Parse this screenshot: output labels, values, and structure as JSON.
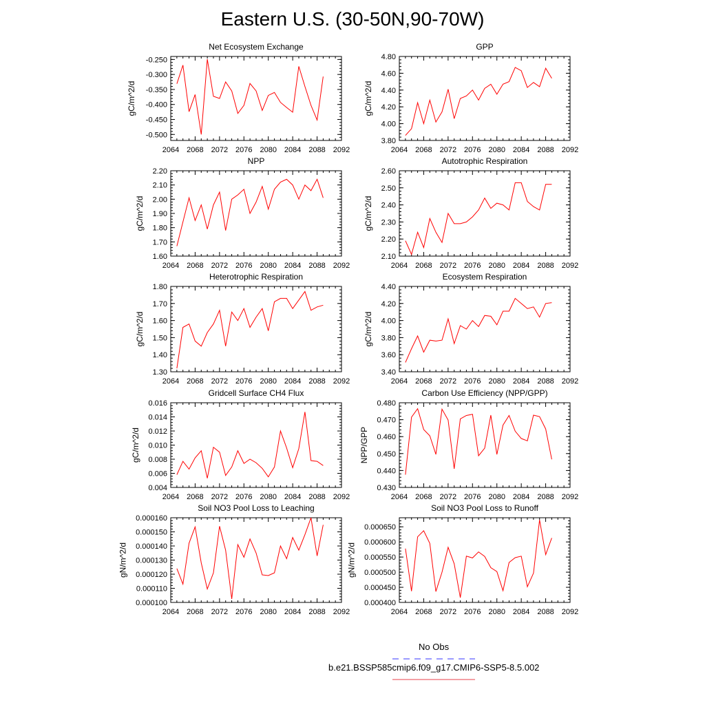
{
  "title": "Eastern U.S. (30-50N,90-70W)",
  "legend": {
    "items": [
      {
        "label": "No Obs",
        "color": "#3333ff",
        "dash": true
      },
      {
        "label": "b.e21.BSSP585cmip6.f09_g17.CMIP6-SSP5-8.5.002",
        "color": "#e8404a",
        "dash": false
      }
    ]
  },
  "colors": {
    "series": "#ff0000",
    "axis": "#000000"
  },
  "chart_data": [
    {
      "type": "line",
      "title": "Net Ecosystem Exchange",
      "ylabel": "gC/m^2/d",
      "xlim": [
        2064,
        2092
      ],
      "xticks": [
        "2064",
        "2068",
        "2072",
        "2076",
        "2080",
        "2084",
        "2088",
        "2092"
      ],
      "ylim": [
        -0.52,
        -0.24
      ],
      "yticks": [
        "-0.250",
        "-0.300",
        "-0.350",
        "-0.400",
        "-0.450",
        "-0.500"
      ],
      "x": [
        2065,
        2066,
        2067,
        2068,
        2069,
        2070,
        2071,
        2072,
        2073,
        2074,
        2075,
        2076,
        2077,
        2078,
        2079,
        2080,
        2081,
        2082,
        2083,
        2084,
        2085,
        2086,
        2087,
        2088,
        2089
      ],
      "series": [
        {
          "values": [
            -0.331,
            -0.269,
            -0.424,
            -0.367,
            -0.5,
            -0.249,
            -0.373,
            -0.38,
            -0.325,
            -0.355,
            -0.43,
            -0.403,
            -0.33,
            -0.355,
            -0.42,
            -0.37,
            -0.36,
            -0.393,
            -0.41,
            -0.426,
            -0.273,
            -0.34,
            -0.403,
            -0.452,
            -0.307
          ]
        }
      ]
    },
    {
      "type": "line",
      "title": "GPP",
      "ylabel": "gC/m^2/d",
      "xlim": [
        2064,
        2092
      ],
      "xticks": [
        "2064",
        "2068",
        "2072",
        "2076",
        "2080",
        "2084",
        "2088",
        "2092"
      ],
      "ylim": [
        3.8,
        4.8
      ],
      "yticks": [
        "4.80",
        "4.60",
        "4.40",
        "4.20",
        "4.00",
        "3.80"
      ],
      "x": [
        2065,
        2066,
        2067,
        2068,
        2069,
        2070,
        2071,
        2072,
        2073,
        2074,
        2075,
        2076,
        2077,
        2078,
        2079,
        2080,
        2081,
        2082,
        2083,
        2084,
        2085,
        2086,
        2087,
        2088,
        2089
      ],
      "series": [
        {
          "values": [
            3.86,
            3.94,
            4.25,
            4.0,
            4.28,
            4.02,
            4.14,
            4.41,
            4.06,
            4.3,
            4.33,
            4.4,
            4.28,
            4.42,
            4.47,
            4.35,
            4.47,
            4.5,
            4.67,
            4.63,
            4.43,
            4.49,
            4.44,
            4.66,
            4.54
          ]
        }
      ]
    },
    {
      "type": "line",
      "title": "NPP",
      "ylabel": "gC/m^2/d",
      "xlim": [
        2064,
        2092
      ],
      "xticks": [
        "2064",
        "2068",
        "2072",
        "2076",
        "2080",
        "2084",
        "2088",
        "2092"
      ],
      "ylim": [
        1.6,
        2.2
      ],
      "yticks": [
        "2.20",
        "2.10",
        "2.00",
        "1.90",
        "1.80",
        "1.70",
        "1.60"
      ],
      "x": [
        2065,
        2066,
        2067,
        2068,
        2069,
        2070,
        2071,
        2072,
        2073,
        2074,
        2075,
        2076,
        2077,
        2078,
        2079,
        2080,
        2081,
        2082,
        2083,
        2084,
        2085,
        2086,
        2087,
        2088,
        2089
      ],
      "series": [
        {
          "values": [
            1.67,
            1.84,
            2.01,
            1.85,
            1.96,
            1.79,
            1.96,
            2.05,
            1.78,
            2.0,
            2.03,
            2.07,
            1.9,
            1.98,
            2.09,
            1.93,
            2.07,
            2.12,
            2.14,
            2.1,
            2.0,
            2.1,
            2.06,
            2.14,
            2.01
          ]
        }
      ]
    },
    {
      "type": "line",
      "title": "Autotrophic Respiration",
      "ylabel": "gC/m^2/d",
      "xlim": [
        2064,
        2092
      ],
      "xticks": [
        "2064",
        "2068",
        "2072",
        "2076",
        "2080",
        "2084",
        "2088",
        "2092"
      ],
      "ylim": [
        2.1,
        2.6
      ],
      "yticks": [
        "2.60",
        "2.50",
        "2.40",
        "2.30",
        "2.20",
        "2.10"
      ],
      "x": [
        2065,
        2066,
        2067,
        2068,
        2069,
        2070,
        2071,
        2072,
        2073,
        2074,
        2075,
        2076,
        2077,
        2078,
        2079,
        2080,
        2081,
        2082,
        2083,
        2084,
        2085,
        2086,
        2087,
        2088,
        2089
      ],
      "series": [
        {
          "values": [
            2.19,
            2.11,
            2.24,
            2.15,
            2.32,
            2.24,
            2.18,
            2.35,
            2.29,
            2.29,
            2.3,
            2.33,
            2.37,
            2.44,
            2.38,
            2.41,
            2.4,
            2.37,
            2.53,
            2.53,
            2.42,
            2.39,
            2.37,
            2.52,
            2.52
          ]
        }
      ]
    },
    {
      "type": "line",
      "title": "Heterotrophic Respiration",
      "ylabel": "gC/m^2/d",
      "xlim": [
        2064,
        2092
      ],
      "xticks": [
        "2064",
        "2068",
        "2072",
        "2076",
        "2080",
        "2084",
        "2088",
        "2092"
      ],
      "ylim": [
        1.3,
        1.8
      ],
      "yticks": [
        "1.80",
        "1.70",
        "1.60",
        "1.50",
        "1.40",
        "1.30"
      ],
      "x": [
        2065,
        2066,
        2067,
        2068,
        2069,
        2070,
        2071,
        2072,
        2073,
        2074,
        2075,
        2076,
        2077,
        2078,
        2079,
        2080,
        2081,
        2082,
        2083,
        2084,
        2085,
        2086,
        2087,
        2088,
        2089
      ],
      "series": [
        {
          "values": [
            1.32,
            1.56,
            1.58,
            1.48,
            1.45,
            1.53,
            1.58,
            1.66,
            1.45,
            1.65,
            1.6,
            1.67,
            1.56,
            1.62,
            1.67,
            1.54,
            1.71,
            1.73,
            1.73,
            1.67,
            1.72,
            1.77,
            1.66,
            1.68,
            1.69
          ]
        }
      ]
    },
    {
      "type": "line",
      "title": "Ecosystem Respiration",
      "ylabel": "gC/m^2/d",
      "xlim": [
        2064,
        2092
      ],
      "xticks": [
        "2064",
        "2068",
        "2072",
        "2076",
        "2080",
        "2084",
        "2088",
        "2092"
      ],
      "ylim": [
        3.4,
        4.4
      ],
      "yticks": [
        "4.40",
        "4.20",
        "4.00",
        "3.80",
        "3.60",
        "3.40"
      ],
      "x": [
        2065,
        2066,
        2067,
        2068,
        2069,
        2070,
        2071,
        2072,
        2073,
        2074,
        2075,
        2076,
        2077,
        2078,
        2079,
        2080,
        2081,
        2082,
        2083,
        2084,
        2085,
        2086,
        2087,
        2088,
        2089
      ],
      "series": [
        {
          "values": [
            3.51,
            3.67,
            3.82,
            3.63,
            3.77,
            3.76,
            3.77,
            4.02,
            3.73,
            3.94,
            3.9,
            4.0,
            3.93,
            4.06,
            4.05,
            3.95,
            4.11,
            4.11,
            4.26,
            4.2,
            4.14,
            4.16,
            4.04,
            4.2,
            4.21
          ]
        }
      ]
    },
    {
      "type": "line",
      "title": "Gridcell Surface CH4 Flux",
      "ylabel": "gC/m^2/d",
      "xlim": [
        2064,
        2092
      ],
      "xticks": [
        "2064",
        "2068",
        "2072",
        "2076",
        "2080",
        "2084",
        "2088",
        "2092"
      ],
      "ylim": [
        0.004,
        0.016
      ],
      "yticks": [
        "0.016",
        "0.014",
        "0.012",
        "0.010",
        "0.008",
        "0.006",
        "0.004"
      ],
      "x": [
        2065,
        2066,
        2067,
        2068,
        2069,
        2070,
        2071,
        2072,
        2073,
        2074,
        2075,
        2076,
        2077,
        2078,
        2079,
        2080,
        2081,
        2082,
        2083,
        2084,
        2085,
        2086,
        2087,
        2088,
        2089
      ],
      "series": [
        {
          "values": [
            0.0058,
            0.0077,
            0.0066,
            0.0082,
            0.0092,
            0.0053,
            0.0097,
            0.009,
            0.0057,
            0.0069,
            0.0092,
            0.0074,
            0.008,
            0.0075,
            0.0067,
            0.0055,
            0.0069,
            0.012,
            0.0096,
            0.0068,
            0.0095,
            0.0147,
            0.0078,
            0.0077,
            0.0071
          ]
        }
      ]
    },
    {
      "type": "line",
      "title": "Carbon Use Efficiency (NPP/GPP)",
      "ylabel": "NPP/GPP",
      "xlim": [
        2064,
        2092
      ],
      "xticks": [
        "2064",
        "2068",
        "2072",
        "2076",
        "2080",
        "2084",
        "2088",
        "2092"
      ],
      "ylim": [
        0.43,
        0.48
      ],
      "yticks": [
        "0.480",
        "0.470",
        "0.460",
        "0.450",
        "0.440",
        "0.430"
      ],
      "x": [
        2065,
        2066,
        2067,
        2068,
        2069,
        2070,
        2071,
        2072,
        2073,
        2074,
        2075,
        2076,
        2077,
        2078,
        2079,
        2080,
        2081,
        2082,
        2083,
        2084,
        2085,
        2086,
        2087,
        2088,
        2089
      ],
      "series": [
        {
          "values": [
            0.4375,
            0.4715,
            0.4765,
            0.4642,
            0.4605,
            0.4495,
            0.4762,
            0.4698,
            0.441,
            0.4705,
            0.4725,
            0.4732,
            0.4487,
            0.4532,
            0.4727,
            0.4495,
            0.4668,
            0.4725,
            0.4632,
            0.4589,
            0.4575,
            0.4727,
            0.4718,
            0.4645,
            0.4466
          ]
        }
      ]
    },
    {
      "type": "line",
      "title": "Soil NO3 Pool Loss to Leaching",
      "ylabel": "gN/m^2/d",
      "xlim": [
        2064,
        2092
      ],
      "xticks": [
        "2064",
        "2068",
        "2072",
        "2076",
        "2080",
        "2084",
        "2088",
        "2092"
      ],
      "ylim": [
        0.0001,
        0.00016
      ],
      "yticks": [
        "0.000160",
        "0.000150",
        "0.000140",
        "0.000130",
        "0.000120",
        "0.000110",
        "0.000100"
      ],
      "x": [
        2065,
        2066,
        2067,
        2068,
        2069,
        2070,
        2071,
        2072,
        2073,
        2074,
        2075,
        2076,
        2077,
        2078,
        2079,
        2080,
        2081,
        2082,
        2083,
        2084,
        2085,
        2086,
        2087,
        2088,
        2089
      ],
      "series": [
        {
          "values": [
            0.000124,
            0.000113,
            0.000142,
            0.0001535,
            0.000128,
            0.0001095,
            0.000121,
            0.000154,
            0.000137,
            0.0001025,
            0.000141,
            0.000132,
            0.000145,
            0.000135,
            0.0001195,
            0.000119,
            0.000121,
            0.00014,
            0.000131,
            0.000146,
            0.000137,
            0.000148,
            0.00016,
            0.000133,
            0.000155
          ]
        }
      ]
    },
    {
      "type": "line",
      "title": "Soil NO3 Pool Loss to Runoff",
      "ylabel": "gN/m^2/d",
      "xlim": [
        2064,
        2092
      ],
      "xticks": [
        "2064",
        "2068",
        "2072",
        "2076",
        "2080",
        "2084",
        "2088",
        "2092"
      ],
      "ylim": [
        0.0004,
        0.00068
      ],
      "yticks": [
        "0.000650",
        "0.000600",
        "0.000550",
        "0.000500",
        "0.000450",
        "0.000400"
      ],
      "x": [
        2065,
        2066,
        2067,
        2068,
        2069,
        2070,
        2071,
        2072,
        2073,
        2074,
        2075,
        2076,
        2077,
        2078,
        2079,
        2080,
        2081,
        2082,
        2083,
        2084,
        2085,
        2086,
        2087,
        2088,
        2089
      ],
      "series": [
        {
          "values": [
            0.000578,
            0.000437,
            0.000617,
            0.000637,
            0.000595,
            0.000436,
            0.0005,
            0.000582,
            0.000528,
            0.000416,
            0.000553,
            0.000547,
            0.000567,
            0.000552,
            0.000515,
            0.000502,
            0.000439,
            0.000532,
            0.000548,
            0.000553,
            0.000452,
            0.000497,
            0.000673,
            0.000558,
            0.000613
          ]
        }
      ]
    }
  ]
}
